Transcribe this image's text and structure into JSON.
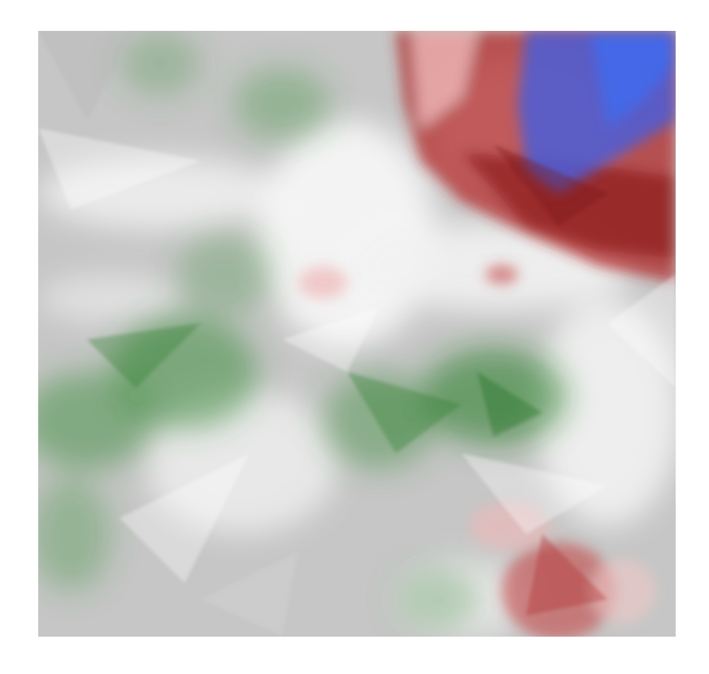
{
  "image": {
    "kind": "abstract-color-field",
    "background_color": "#ffffff",
    "base_color": "#c6c6c6",
    "palette": {
      "gray": "#c2c2c2",
      "light": "#f4f4f4",
      "green": "#3e8e3e",
      "dark_green": "#1f7a1f",
      "red": "#b02a2a",
      "dark_red": "#8c1c1c",
      "pink": "#f0b8b8",
      "blue": "#4a5ed8",
      "bright_blue": "#3f6cf0"
    }
  }
}
